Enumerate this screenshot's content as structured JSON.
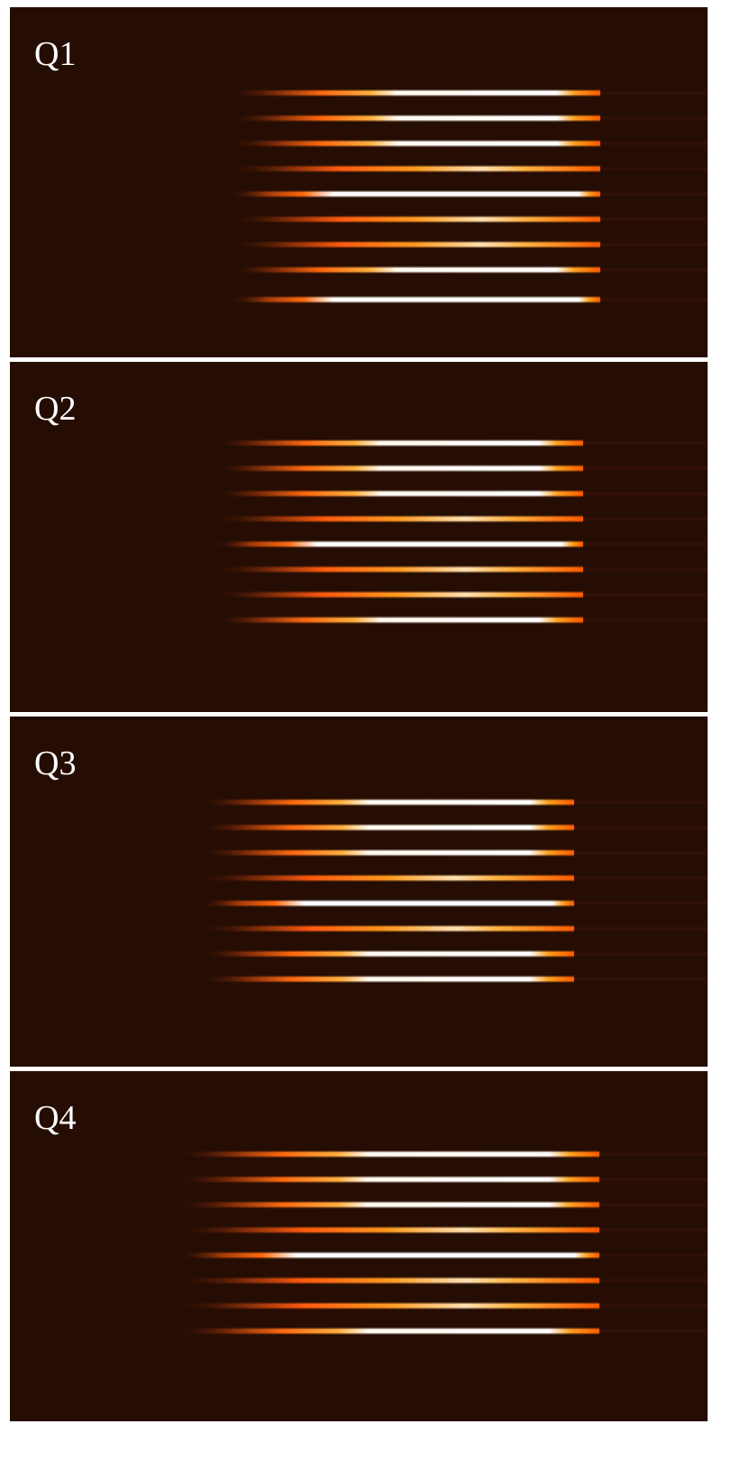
{
  "panels": [
    {
      "label": "Q1"
    },
    {
      "label": "Q2"
    },
    {
      "label": "Q3"
    },
    {
      "label": "Q4"
    }
  ]
}
